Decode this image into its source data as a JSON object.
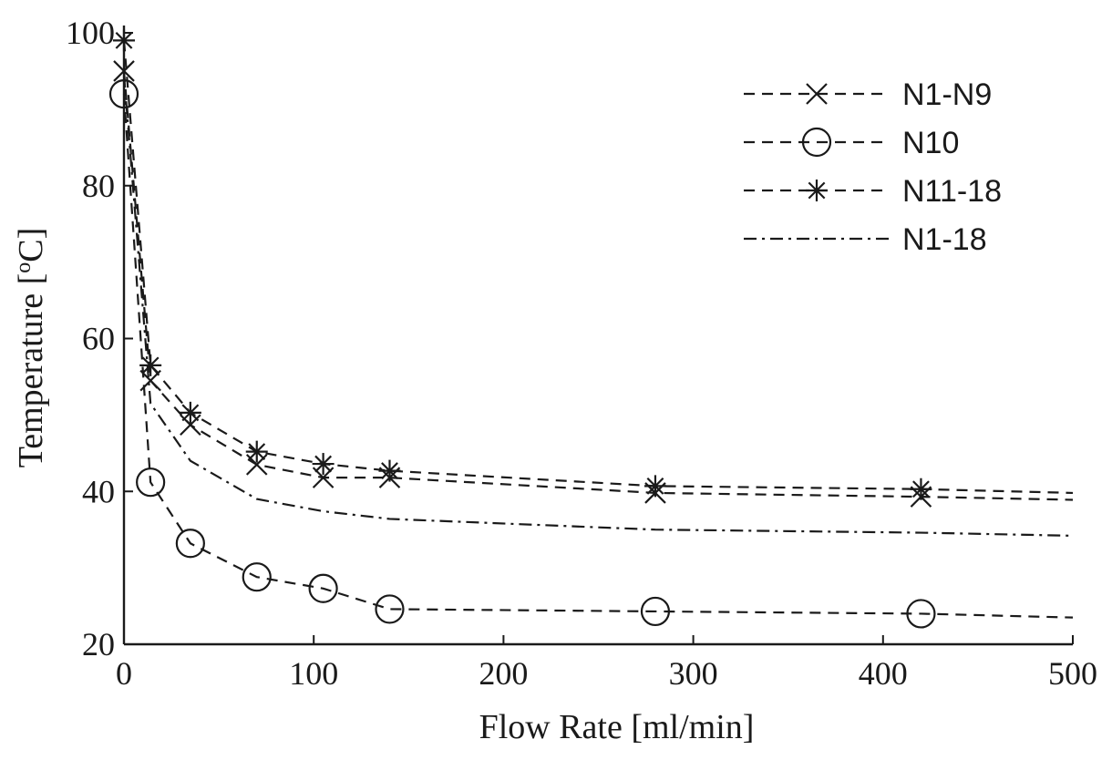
{
  "chart_data": {
    "type": "line",
    "title": "",
    "xlabel": "Flow Rate [ml/min]",
    "ylabel_main": "Temperature [",
    "ylabel_sup": "o",
    "ylabel_end": "C]",
    "xlim": [
      0,
      500
    ],
    "ylim": [
      20,
      100
    ],
    "xticks": [
      "0",
      "100",
      "200",
      "300",
      "400",
      "500"
    ],
    "yticks": [
      "20",
      "40",
      "60",
      "80",
      "100"
    ],
    "grid": false,
    "legend_position": "top-right",
    "series": [
      {
        "name": "N1-N9",
        "style": "dashed",
        "marker": "x",
        "x": [
          0,
          14,
          35,
          70,
          105,
          140,
          280,
          420,
          500
        ],
        "y": [
          95,
          54.5,
          48.7,
          43.5,
          41.8,
          41.8,
          39.8,
          39.3,
          38.9
        ],
        "marker_x": [
          0,
          14,
          35,
          70,
          105,
          140,
          280,
          420
        ],
        "marker_y": [
          95,
          54.5,
          48.7,
          43.5,
          41.8,
          41.8,
          39.8,
          39.3
        ]
      },
      {
        "name": "N10",
        "style": "dashed",
        "marker": "circle",
        "x": [
          0,
          14,
          35,
          70,
          105,
          140,
          280,
          420,
          500
        ],
        "y": [
          92,
          41.2,
          33.2,
          28.8,
          27.3,
          24.6,
          24.3,
          24.0,
          23.5
        ],
        "marker_x": [
          0,
          14,
          35,
          70,
          105,
          140,
          280,
          420
        ],
        "marker_y": [
          92,
          41.2,
          33.2,
          28.8,
          27.3,
          24.6,
          24.3,
          24.0
        ]
      },
      {
        "name": "N11-18",
        "style": "dashed",
        "marker": "asterisk",
        "x": [
          0,
          14,
          35,
          70,
          105,
          140,
          280,
          420,
          500
        ],
        "y": [
          99,
          56.5,
          50.3,
          45.2,
          43.6,
          42.7,
          40.7,
          40.3,
          39.8
        ],
        "marker_x": [
          0,
          14,
          35,
          70,
          105,
          140,
          280,
          420
        ],
        "marker_y": [
          99,
          56.5,
          50.3,
          45.2,
          43.6,
          42.7,
          40.7,
          40.3
        ]
      },
      {
        "name": "N1-18",
        "style": "dashdot",
        "marker": "none",
        "x": [
          0,
          14,
          35,
          70,
          105,
          140,
          280,
          420,
          500
        ],
        "y": [
          94.5,
          51.5,
          44.0,
          39.0,
          37.4,
          36.4,
          35.0,
          34.6,
          34.2
        ],
        "marker_x": [],
        "marker_y": []
      }
    ]
  }
}
